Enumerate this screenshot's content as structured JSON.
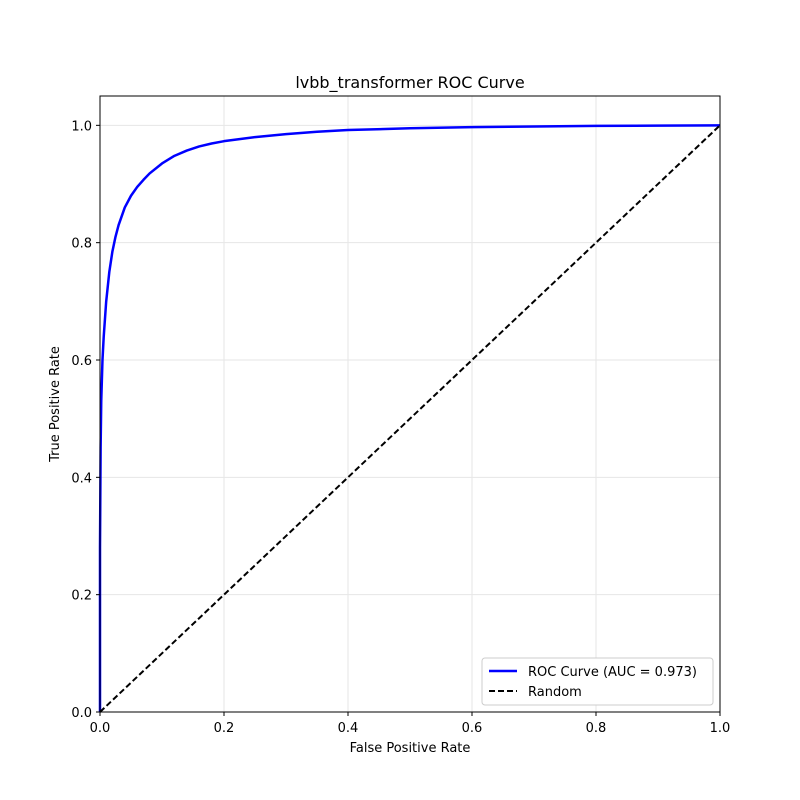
{
  "chart_data": {
    "type": "line",
    "title": "lvbb_transformer ROC Curve",
    "xlabel": "False Positive Rate",
    "ylabel": "True Positive Rate",
    "xlim": [
      0.0,
      1.0
    ],
    "ylim": [
      0.0,
      1.05
    ],
    "xticks": [
      0.0,
      0.2,
      0.4,
      0.6,
      0.8,
      1.0
    ],
    "xtick_labels": [
      "0.0",
      "0.2",
      "0.4",
      "0.6",
      "0.8",
      "1.0"
    ],
    "yticks": [
      0.0,
      0.2,
      0.4,
      0.6,
      0.8,
      1.0
    ],
    "ytick_labels": [
      "0.0",
      "0.2",
      "0.4",
      "0.6",
      "0.8",
      "1.0"
    ],
    "grid": true,
    "legend_position": "lower-right",
    "series": [
      {
        "name": "ROC Curve (AUC = 0.973)",
        "color": "#0000ff",
        "style": "solid",
        "x": [
          0.0,
          0.0,
          0.001,
          0.002,
          0.004,
          0.006,
          0.008,
          0.01,
          0.015,
          0.02,
          0.025,
          0.03,
          0.04,
          0.05,
          0.06,
          0.07,
          0.08,
          0.1,
          0.12,
          0.14,
          0.16,
          0.18,
          0.2,
          0.25,
          0.3,
          0.35,
          0.4,
          0.5,
          0.6,
          0.7,
          0.8,
          0.9,
          1.0
        ],
        "y": [
          0.0,
          0.28,
          0.45,
          0.53,
          0.6,
          0.64,
          0.67,
          0.7,
          0.75,
          0.785,
          0.81,
          0.83,
          0.86,
          0.88,
          0.895,
          0.907,
          0.918,
          0.935,
          0.948,
          0.957,
          0.964,
          0.969,
          0.973,
          0.98,
          0.985,
          0.989,
          0.992,
          0.995,
          0.997,
          0.998,
          0.999,
          0.9995,
          1.0
        ]
      },
      {
        "name": "Random",
        "color": "#000000",
        "style": "dashed",
        "x": [
          0.0,
          1.0
        ],
        "y": [
          0.0,
          1.0
        ]
      }
    ]
  }
}
